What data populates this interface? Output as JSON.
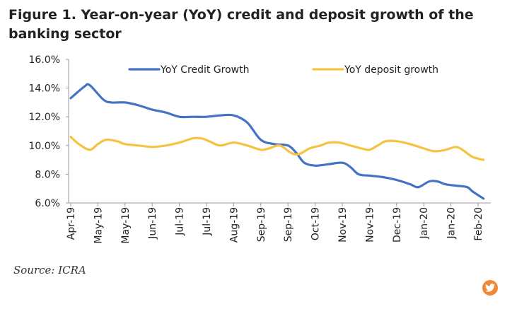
{
  "figure_title": "Figure 1. Year-on-year (YoY) credit and deposit growth of the banking sector",
  "source": "Source: ICRA",
  "share_icon": "twitter-icon",
  "chart_data": {
    "type": "line",
    "title": "",
    "xlabel": "",
    "ylabel": "",
    "ylim": [
      6,
      16
    ],
    "y_ticks": [
      "6.0%",
      "8.0%",
      "10.0%",
      "12.0%",
      "14.0%",
      "16.0%"
    ],
    "x_tick_labels": [
      "Apr-19",
      "May-19",
      "May-19",
      "Jun-19",
      "Jul-19",
      "Jul-19",
      "Aug-19",
      "Sep-19",
      "Sep-19",
      "Oct-19",
      "Nov-19",
      "Nov-19",
      "Dec-19",
      "Jan-20",
      "Jan-20",
      "Feb-20"
    ],
    "x_range": [
      0,
      15.2
    ],
    "legend_position": "top",
    "grid": false,
    "series": [
      {
        "name": "YoY Credit Growth",
        "color": "#4472c4",
        "points": [
          [
            0,
            13.3
          ],
          [
            0.5,
            14.1
          ],
          [
            0.7,
            14.2
          ],
          [
            1.2,
            13.2
          ],
          [
            1.5,
            13.0
          ],
          [
            2.0,
            13.0
          ],
          [
            2.5,
            12.8
          ],
          [
            3.0,
            12.5
          ],
          [
            3.5,
            12.3
          ],
          [
            4.0,
            12.0
          ],
          [
            4.5,
            12.0
          ],
          [
            5.0,
            12.0
          ],
          [
            5.5,
            12.1
          ],
          [
            6.0,
            12.1
          ],
          [
            6.5,
            11.6
          ],
          [
            7.0,
            10.4
          ],
          [
            7.5,
            10.1
          ],
          [
            8.0,
            10.0
          ],
          [
            8.3,
            9.5
          ],
          [
            8.6,
            8.8
          ],
          [
            9.0,
            8.6
          ],
          [
            9.5,
            8.7
          ],
          [
            10.0,
            8.8
          ],
          [
            10.3,
            8.5
          ],
          [
            10.6,
            8.0
          ],
          [
            11.0,
            7.9
          ],
          [
            11.5,
            7.8
          ],
          [
            12.0,
            7.6
          ],
          [
            12.5,
            7.3
          ],
          [
            12.8,
            7.1
          ],
          [
            13.2,
            7.5
          ],
          [
            13.5,
            7.5
          ],
          [
            13.8,
            7.3
          ],
          [
            14.2,
            7.2
          ],
          [
            14.6,
            7.1
          ],
          [
            14.8,
            6.8
          ],
          [
            15.2,
            6.3
          ]
        ]
      },
      {
        "name": "YoY deposit growth",
        "color": "#f5c342",
        "points": [
          [
            0,
            10.6
          ],
          [
            0.3,
            10.1
          ],
          [
            0.7,
            9.7
          ],
          [
            1.0,
            10.1
          ],
          [
            1.3,
            10.4
          ],
          [
            1.7,
            10.3
          ],
          [
            2.0,
            10.1
          ],
          [
            2.5,
            10.0
          ],
          [
            3.0,
            9.9
          ],
          [
            3.5,
            10.0
          ],
          [
            4.0,
            10.2
          ],
          [
            4.5,
            10.5
          ],
          [
            4.8,
            10.5
          ],
          [
            5.1,
            10.3
          ],
          [
            5.5,
            10.0
          ],
          [
            6.0,
            10.2
          ],
          [
            6.5,
            10.0
          ],
          [
            7.0,
            9.7
          ],
          [
            7.3,
            9.8
          ],
          [
            7.7,
            10.0
          ],
          [
            8.1,
            9.5
          ],
          [
            8.4,
            9.4
          ],
          [
            8.8,
            9.8
          ],
          [
            9.2,
            10.0
          ],
          [
            9.5,
            10.2
          ],
          [
            9.9,
            10.2
          ],
          [
            10.3,
            10.0
          ],
          [
            10.7,
            9.8
          ],
          [
            11.0,
            9.7
          ],
          [
            11.3,
            10.0
          ],
          [
            11.6,
            10.3
          ],
          [
            12.0,
            10.3
          ],
          [
            12.5,
            10.1
          ],
          [
            13.0,
            9.8
          ],
          [
            13.4,
            9.6
          ],
          [
            13.8,
            9.7
          ],
          [
            14.2,
            9.9
          ],
          [
            14.5,
            9.6
          ],
          [
            14.8,
            9.2
          ],
          [
            15.2,
            9.0
          ]
        ]
      }
    ]
  }
}
